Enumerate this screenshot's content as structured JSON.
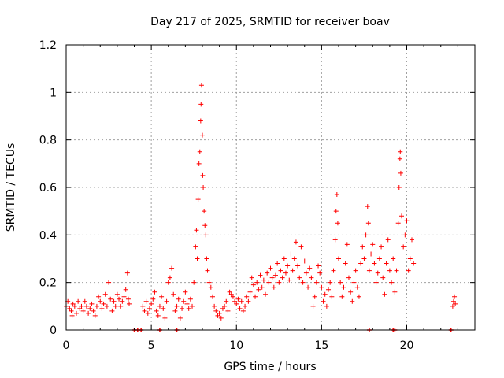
{
  "chart_data": {
    "type": "scatter",
    "title": "Day 217 of 2025, SRMTID for receiver boav",
    "xlabel": "GPS time / hours",
    "ylabel": "SRMTID / TECUs",
    "xlim": [
      0,
      24
    ],
    "ylim": [
      0,
      1.2
    ],
    "grid": true,
    "marker": "+",
    "color": "#ff0000",
    "x_ticks": [
      {
        "value": 0,
        "label": "0"
      },
      {
        "value": 5,
        "label": "5"
      },
      {
        "value": 10,
        "label": "10"
      },
      {
        "value": 15,
        "label": "15"
      },
      {
        "value": 20,
        "label": "20"
      }
    ],
    "y_ticks": [
      {
        "value": 0,
        "label": "0"
      },
      {
        "value": 0.2,
        "label": "0.2"
      },
      {
        "value": 0.4,
        "label": "0.4"
      },
      {
        "value": 0.6,
        "label": "0.6"
      },
      {
        "value": 0.8,
        "label": "0.8"
      },
      {
        "value": 1.0,
        "label": "1"
      },
      {
        "value": 1.2,
        "label": "1.2"
      }
    ],
    "series": [
      {
        "name": "SRMTID",
        "points": [
          [
            0.0,
            0.1
          ],
          [
            0.1,
            0.12
          ],
          [
            0.2,
            0.09
          ],
          [
            0.3,
            0.08
          ],
          [
            0.35,
            0.06
          ],
          [
            0.4,
            0.11
          ],
          [
            0.5,
            0.1
          ],
          [
            0.6,
            0.07
          ],
          [
            0.7,
            0.12
          ],
          [
            0.8,
            0.09
          ],
          [
            0.9,
            0.1
          ],
          [
            1.0,
            0.08
          ],
          [
            1.1,
            0.12
          ],
          [
            1.2,
            0.1
          ],
          [
            1.3,
            0.07
          ],
          [
            1.4,
            0.09
          ],
          [
            1.5,
            0.11
          ],
          [
            1.6,
            0.08
          ],
          [
            1.7,
            0.06
          ],
          [
            1.8,
            0.1
          ],
          [
            1.9,
            0.14
          ],
          [
            2.0,
            0.12
          ],
          [
            2.1,
            0.09
          ],
          [
            2.2,
            0.11
          ],
          [
            2.3,
            0.15
          ],
          [
            2.4,
            0.1
          ],
          [
            2.5,
            0.2
          ],
          [
            2.6,
            0.13
          ],
          [
            2.7,
            0.08
          ],
          [
            2.8,
            0.12
          ],
          [
            2.9,
            0.1
          ],
          [
            3.0,
            0.15
          ],
          [
            3.1,
            0.13
          ],
          [
            3.2,
            0.1
          ],
          [
            3.3,
            0.12
          ],
          [
            3.4,
            0.14
          ],
          [
            3.5,
            0.17
          ],
          [
            3.6,
            0.24
          ],
          [
            3.65,
            0.13
          ],
          [
            3.7,
            0.11
          ],
          [
            4.5,
            0.1
          ],
          [
            4.6,
            0.08
          ],
          [
            4.7,
            0.12
          ],
          [
            4.8,
            0.07
          ],
          [
            4.9,
            0.09
          ],
          [
            5.0,
            0.11
          ],
          [
            5.1,
            0.13
          ],
          [
            5.2,
            0.16
          ],
          [
            5.3,
            0.08
          ],
          [
            5.4,
            0.06
          ],
          [
            5.5,
            0.1
          ],
          [
            5.6,
            0.14
          ],
          [
            5.7,
            0.09
          ],
          [
            5.8,
            0.05
          ],
          [
            5.9,
            0.12
          ],
          [
            6.0,
            0.2
          ],
          [
            6.1,
            0.22
          ],
          [
            6.2,
            0.26
          ],
          [
            6.3,
            0.15
          ],
          [
            6.4,
            0.08
          ],
          [
            6.5,
            0.1
          ],
          [
            6.6,
            0.13
          ],
          [
            6.7,
            0.05
          ],
          [
            6.8,
            0.09
          ],
          [
            6.9,
            0.12
          ],
          [
            7.0,
            0.16
          ],
          [
            7.1,
            0.11
          ],
          [
            7.2,
            0.09
          ],
          [
            7.3,
            0.13
          ],
          [
            7.4,
            0.1
          ],
          [
            7.5,
            0.2
          ],
          [
            7.6,
            0.35
          ],
          [
            7.65,
            0.42
          ],
          [
            7.7,
            0.3
          ],
          [
            7.75,
            0.55
          ],
          [
            7.8,
            0.7
          ],
          [
            7.85,
            0.75
          ],
          [
            7.9,
            0.88
          ],
          [
            7.92,
            0.95
          ],
          [
            7.95,
            1.03
          ],
          [
            8.0,
            0.82
          ],
          [
            8.02,
            0.65
          ],
          [
            8.05,
            0.6
          ],
          [
            8.1,
            0.5
          ],
          [
            8.15,
            0.44
          ],
          [
            8.2,
            0.4
          ],
          [
            8.25,
            0.3
          ],
          [
            8.3,
            0.25
          ],
          [
            8.4,
            0.2
          ],
          [
            8.5,
            0.18
          ],
          [
            8.6,
            0.14
          ],
          [
            8.7,
            0.1
          ],
          [
            8.8,
            0.08
          ],
          [
            8.9,
            0.06
          ],
          [
            9.0,
            0.07
          ],
          [
            9.1,
            0.05
          ],
          [
            9.2,
            0.09
          ],
          [
            9.3,
            0.1
          ],
          [
            9.4,
            0.12
          ],
          [
            9.5,
            0.08
          ],
          [
            9.6,
            0.16
          ],
          [
            9.7,
            0.15
          ],
          [
            9.8,
            0.14
          ],
          [
            9.9,
            0.12
          ],
          [
            10.0,
            0.11
          ],
          [
            10.1,
            0.13
          ],
          [
            10.2,
            0.09
          ],
          [
            10.3,
            0.12
          ],
          [
            10.4,
            0.08
          ],
          [
            10.5,
            0.1
          ],
          [
            10.6,
            0.14
          ],
          [
            10.7,
            0.12
          ],
          [
            10.8,
            0.16
          ],
          [
            10.9,
            0.22
          ],
          [
            11.0,
            0.19
          ],
          [
            11.1,
            0.14
          ],
          [
            11.2,
            0.2
          ],
          [
            11.3,
            0.17
          ],
          [
            11.4,
            0.23
          ],
          [
            11.5,
            0.18
          ],
          [
            11.6,
            0.21
          ],
          [
            11.7,
            0.15
          ],
          [
            11.8,
            0.24
          ],
          [
            11.9,
            0.2
          ],
          [
            12.0,
            0.26
          ],
          [
            12.1,
            0.22
          ],
          [
            12.2,
            0.18
          ],
          [
            12.3,
            0.23
          ],
          [
            12.4,
            0.28
          ],
          [
            12.5,
            0.2
          ],
          [
            12.6,
            0.25
          ],
          [
            12.7,
            0.22
          ],
          [
            12.8,
            0.3
          ],
          [
            12.9,
            0.24
          ],
          [
            13.0,
            0.27
          ],
          [
            13.1,
            0.21
          ],
          [
            13.2,
            0.32
          ],
          [
            13.3,
            0.25
          ],
          [
            13.4,
            0.3
          ],
          [
            13.5,
            0.37
          ],
          [
            13.6,
            0.27
          ],
          [
            13.7,
            0.22
          ],
          [
            13.8,
            0.35
          ],
          [
            13.9,
            0.2
          ],
          [
            14.0,
            0.29
          ],
          [
            14.1,
            0.24
          ],
          [
            14.2,
            0.18
          ],
          [
            14.3,
            0.26
          ],
          [
            14.4,
            0.22
          ],
          [
            14.5,
            0.1
          ],
          [
            14.6,
            0.14
          ],
          [
            14.7,
            0.2
          ],
          [
            14.8,
            0.27
          ],
          [
            14.9,
            0.24
          ],
          [
            15.0,
            0.18
          ],
          [
            15.1,
            0.12
          ],
          [
            15.2,
            0.15
          ],
          [
            15.3,
            0.1
          ],
          [
            15.4,
            0.17
          ],
          [
            15.5,
            0.2
          ],
          [
            15.6,
            0.14
          ],
          [
            15.7,
            0.25
          ],
          [
            15.8,
            0.38
          ],
          [
            15.85,
            0.5
          ],
          [
            15.9,
            0.57
          ],
          [
            15.95,
            0.45
          ],
          [
            16.0,
            0.3
          ],
          [
            16.1,
            0.2
          ],
          [
            16.2,
            0.14
          ],
          [
            16.3,
            0.18
          ],
          [
            16.4,
            0.28
          ],
          [
            16.5,
            0.36
          ],
          [
            16.6,
            0.22
          ],
          [
            16.7,
            0.16
          ],
          [
            16.8,
            0.12
          ],
          [
            16.9,
            0.2
          ],
          [
            17.0,
            0.25
          ],
          [
            17.1,
            0.18
          ],
          [
            17.2,
            0.14
          ],
          [
            17.3,
            0.28
          ],
          [
            17.4,
            0.35
          ],
          [
            17.5,
            0.3
          ],
          [
            17.6,
            0.4
          ],
          [
            17.7,
            0.52
          ],
          [
            17.75,
            0.45
          ],
          [
            17.8,
            0.25
          ],
          [
            17.9,
            0.32
          ],
          [
            18.0,
            0.36
          ],
          [
            18.1,
            0.28
          ],
          [
            18.2,
            0.2
          ],
          [
            18.3,
            0.24
          ],
          [
            18.4,
            0.3
          ],
          [
            18.5,
            0.35
          ],
          [
            18.6,
            0.22
          ],
          [
            18.7,
            0.15
          ],
          [
            18.8,
            0.28
          ],
          [
            18.9,
            0.38
          ],
          [
            19.0,
            0.25
          ],
          [
            19.1,
            0.2
          ],
          [
            19.2,
            0.3
          ],
          [
            19.3,
            0.16
          ],
          [
            19.4,
            0.25
          ],
          [
            19.5,
            0.45
          ],
          [
            19.55,
            0.6
          ],
          [
            19.6,
            0.72
          ],
          [
            19.62,
            0.75
          ],
          [
            19.65,
            0.66
          ],
          [
            19.7,
            0.48
          ],
          [
            19.8,
            0.35
          ],
          [
            19.9,
            0.4
          ],
          [
            20.0,
            0.46
          ],
          [
            20.1,
            0.25
          ],
          [
            20.2,
            0.3
          ],
          [
            20.3,
            0.38
          ],
          [
            20.4,
            0.28
          ],
          [
            22.7,
            0.1
          ],
          [
            22.75,
            0.12
          ],
          [
            22.8,
            0.14
          ],
          [
            22.85,
            0.11
          ]
        ],
        "zero_points": [
          4.0,
          4.2,
          4.4,
          5.5,
          6.5,
          17.8,
          19.2,
          19.3,
          22.6
        ]
      }
    ]
  }
}
